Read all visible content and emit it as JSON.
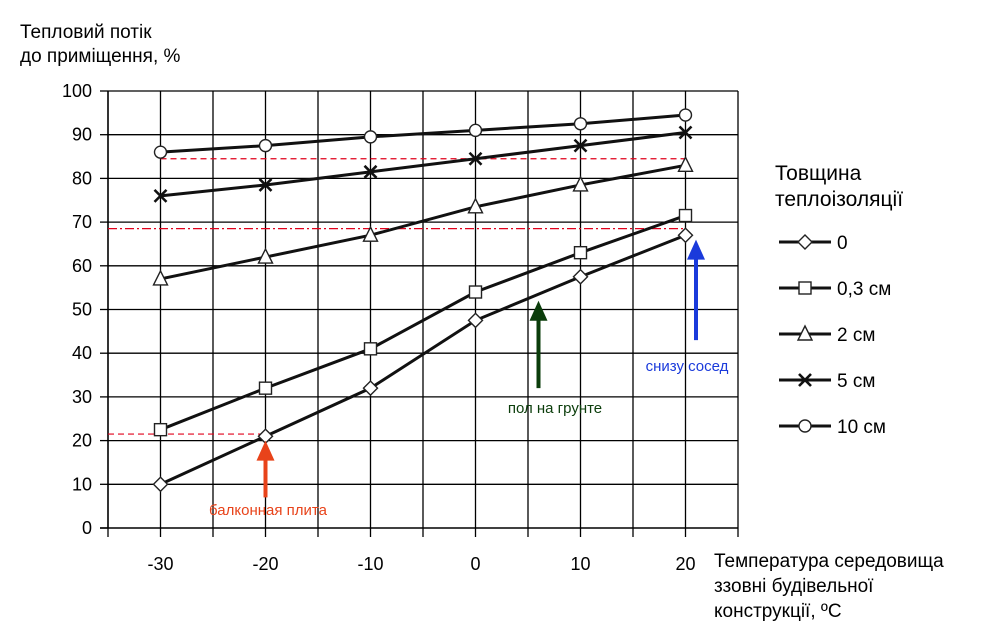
{
  "chart_data": {
    "type": "line",
    "ylabel": [
      "Тепловий потік",
      "до приміщення, %"
    ],
    "xlabel": [
      "Температура середовища",
      "ззовні будівельної",
      "конструкції, ºC"
    ],
    "x": [
      -30,
      -20,
      -10,
      0,
      10,
      20
    ],
    "xticks": [
      "-30",
      "-20",
      "-10",
      "0",
      "10",
      "20"
    ],
    "xlim": [
      -35,
      25
    ],
    "ylim": [
      0,
      100
    ],
    "yticks": [
      "0",
      "10",
      "20",
      "30",
      "40",
      "50",
      "60",
      "70",
      "80",
      "90",
      "100"
    ],
    "legend_title": [
      "Товщина",
      "теплоізоляції"
    ],
    "series": [
      {
        "name": "0",
        "marker": "diamond",
        "values": [
          10,
          21,
          32,
          47.5,
          57.5,
          67
        ]
      },
      {
        "name": "0,3 см",
        "marker": "square",
        "values": [
          22.5,
          32,
          41,
          54,
          63,
          71.5
        ]
      },
      {
        "name": "2 см",
        "marker": "triangle",
        "values": [
          57,
          62,
          67,
          73.5,
          78.5,
          83
        ]
      },
      {
        "name": "5 см",
        "marker": "x",
        "values": [
          76,
          78.5,
          81.5,
          84.5,
          87.5,
          90.5
        ]
      },
      {
        "name": "10 см",
        "marker": "circle",
        "values": [
          86,
          87.5,
          89.5,
          91,
          92.5,
          94.5
        ]
      }
    ],
    "reference_lines": [
      {
        "y": 84.5,
        "style": "dashed",
        "x_from": -30,
        "x_to": 20
      },
      {
        "y": 68.5,
        "style": "dashdot",
        "x_from": -35,
        "x_to": 20
      },
      {
        "y": 21.5,
        "style": "dashed",
        "x_from": -35,
        "x_to": -20
      }
    ],
    "annotations": [
      {
        "text": "балконная плита",
        "color": "#e8431a",
        "x": -20,
        "y_from": 7,
        "y_to": 20
      },
      {
        "text": "пол на грунте",
        "color": "#0b3d0b",
        "x": 6,
        "y_from": 32,
        "y_to": 52
      },
      {
        "text": "снизу сосед",
        "color": "#1a3adb",
        "x": 21,
        "y_from": 43,
        "y_to": 66
      }
    ]
  }
}
